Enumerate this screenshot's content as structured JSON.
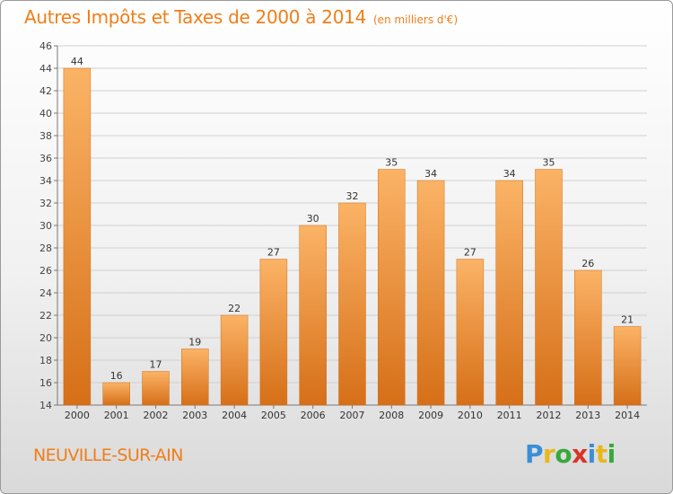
{
  "title": "Autres Impôts et Taxes de 2000 à 2014",
  "unit": "(en milliers d'€)",
  "commune": "NEUVILLE-SUR-AIN",
  "logo_text": "Proxiti",
  "colors": {
    "title": "#f07e18",
    "bar_light": "#f9ad5f",
    "bar_dark": "#d8701a",
    "grid": "#d0d0d0"
  },
  "chart_data": {
    "type": "bar",
    "title": "Autres Impôts et Taxes de 2000 à 2014",
    "subtitle": "(en milliers d'€)",
    "categories": [
      "2000",
      "2001",
      "2002",
      "2003",
      "2004",
      "2005",
      "2006",
      "2007",
      "2008",
      "2009",
      "2010",
      "2011",
      "2012",
      "2013",
      "2014"
    ],
    "values": [
      44,
      16,
      17,
      19,
      22,
      27,
      30,
      32,
      35,
      34,
      27,
      34,
      35,
      26,
      21
    ],
    "ylim": [
      14,
      46
    ],
    "yticks": [
      14,
      16,
      18,
      20,
      22,
      24,
      26,
      28,
      30,
      32,
      34,
      36,
      38,
      40,
      42,
      44,
      46
    ],
    "grid": true,
    "data_labels": true
  }
}
